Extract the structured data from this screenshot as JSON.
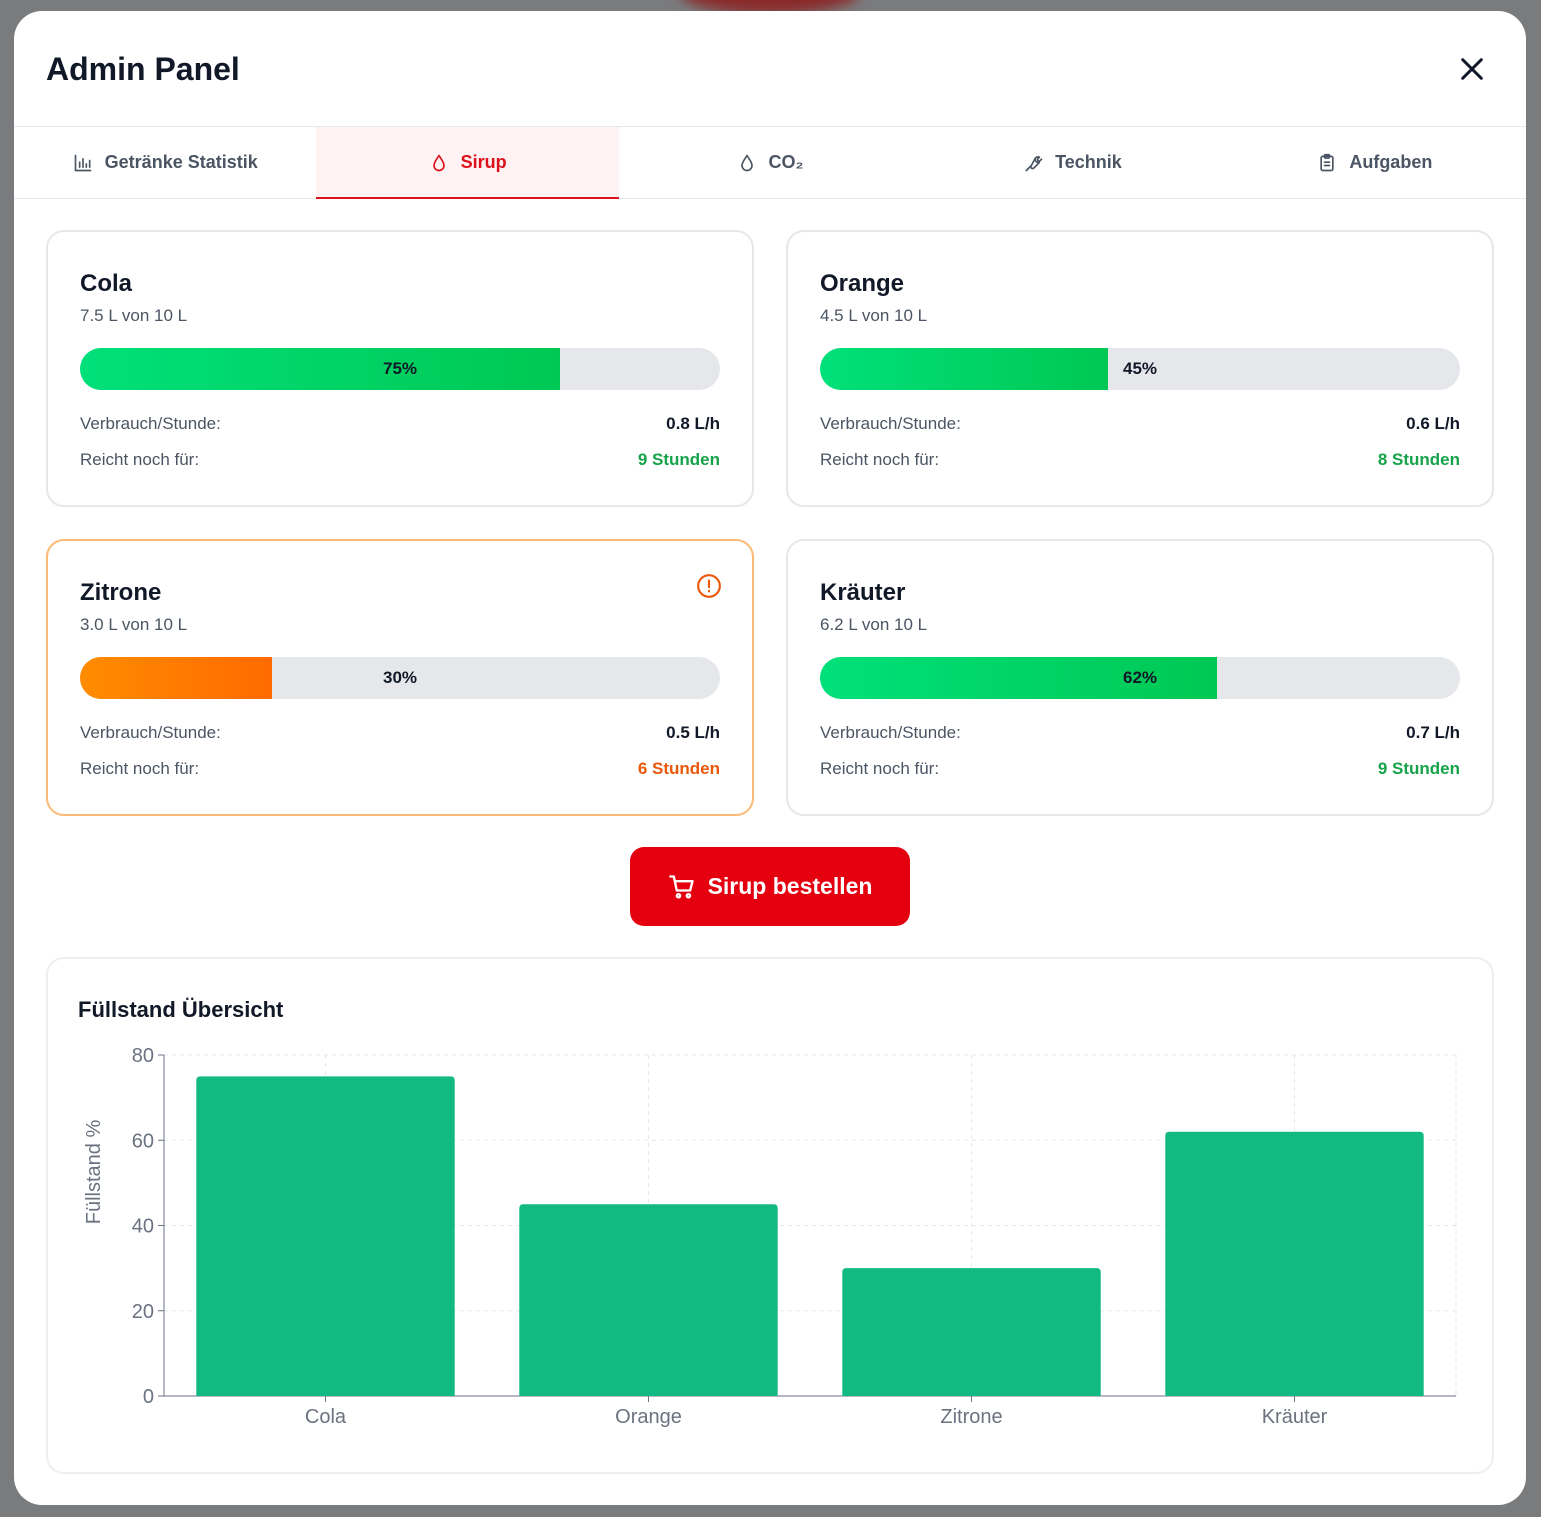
{
  "modal": {
    "title": "Admin Panel",
    "close_icon": "close-icon"
  },
  "tabs": [
    {
      "label": "Getränke Statistik",
      "icon": "bar-chart-icon",
      "active": false
    },
    {
      "label": "Sirup",
      "icon": "droplet-icon",
      "active": true
    },
    {
      "label": "CO₂",
      "icon": "droplet-icon",
      "active": false
    },
    {
      "label": "Technik",
      "icon": "wrench-icon",
      "active": false
    },
    {
      "label": "Aufgaben",
      "icon": "clipboard-icon",
      "active": false
    }
  ],
  "cards": [
    {
      "name": "Cola",
      "sub": "7.5 L von 10 L",
      "percent": 75,
      "percent_label": "75%",
      "consumption_label": "Verbrauch/Stunde:",
      "consumption": "0.8 L/h",
      "remaining_label": "Reicht noch für:",
      "remaining": "9 Stunden",
      "status": "ok"
    },
    {
      "name": "Orange",
      "sub": "4.5 L von 10 L",
      "percent": 45,
      "percent_label": "45%",
      "consumption_label": "Verbrauch/Stunde:",
      "consumption": "0.6 L/h",
      "remaining_label": "Reicht noch für:",
      "remaining": "8 Stunden",
      "status": "ok"
    },
    {
      "name": "Zitrone",
      "sub": "3.0 L von 10 L",
      "percent": 30,
      "percent_label": "30%",
      "consumption_label": "Verbrauch/Stunde:",
      "consumption": "0.5 L/h",
      "remaining_label": "Reicht noch für:",
      "remaining": "6 Stunden",
      "status": "warning"
    },
    {
      "name": "Kräuter",
      "sub": "6.2 L von 10 L",
      "percent": 62,
      "percent_label": "62%",
      "consumption_label": "Verbrauch/Stunde:",
      "consumption": "0.7 L/h",
      "remaining_label": "Reicht noch für:",
      "remaining": "9 Stunden",
      "status": "ok"
    }
  ],
  "order_button": {
    "label": "Sirup bestellen",
    "icon": "shopping-cart-icon"
  },
  "colors": {
    "accent": "#e5000f",
    "ok": "#16a34a",
    "warning": "#ea580c",
    "bar": "#12b981"
  },
  "chart_data": {
    "type": "bar",
    "title": "Füllstand Übersicht",
    "categories": [
      "Cola",
      "Orange",
      "Zitrone",
      "Kräuter"
    ],
    "values": [
      75,
      45,
      30,
      62
    ],
    "ylabel": "Füllstand %",
    "xlabel": "",
    "ylim": [
      0,
      80
    ],
    "yticks": [
      0,
      20,
      40,
      60,
      80
    ],
    "grid": true
  }
}
